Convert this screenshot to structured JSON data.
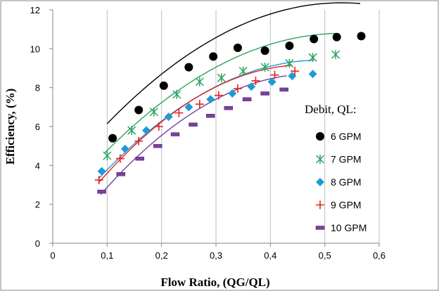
{
  "colors": {
    "gpm6": "#000000",
    "gpm7": "#2ca25f",
    "gpm8": "#1e9bd7",
    "gpm9": "#e8221c",
    "gpm10": "#7b3f9e",
    "grid": "#bfbfbf",
    "axis": "#868686",
    "frame": "#888888"
  },
  "chart_data": {
    "type": "scatter",
    "title": "",
    "xlabel": "Flow Ratio, (QG/QL)",
    "ylabel": "Efficiency,  (%)",
    "xlim": [
      0,
      0.6
    ],
    "ylim": [
      0,
      12
    ],
    "xticks": [
      "0",
      "0,1",
      "0,2",
      "0,3",
      "0,4",
      "0,5",
      "0,6"
    ],
    "yticks": [
      "0",
      "2",
      "4",
      "6",
      "8",
      "10",
      "12"
    ],
    "grid": "vertical",
    "legend": {
      "title": "Debit, QL:",
      "position": "right"
    },
    "series": [
      {
        "name": "6 GPM",
        "marker": "circle",
        "x": [
          0.11,
          0.158,
          0.204,
          0.25,
          0.295,
          0.34,
          0.39,
          0.435,
          0.48,
          0.522,
          0.567
        ],
        "y": [
          5.4,
          6.85,
          8.1,
          9.05,
          9.6,
          10.05,
          9.9,
          10.15,
          10.5,
          10.6,
          10.65
        ],
        "trend": {
          "x0": 0.1,
          "x1": 0.565,
          "coef": [
            2.93,
            35.5,
            -33.4
          ]
        }
      },
      {
        "name": "7 GPM",
        "marker": "asterisk",
        "x": [
          0.1,
          0.145,
          0.186,
          0.228,
          0.27,
          0.31,
          0.35,
          0.39,
          0.435,
          0.478,
          0.52
        ],
        "y": [
          4.5,
          5.8,
          6.75,
          7.65,
          8.3,
          8.5,
          8.85,
          9.05,
          9.25,
          9.55,
          9.7
        ],
        "trend": {
          "x0": 0.095,
          "x1": 0.52,
          "coef": [
            1.66,
            34.3,
            -32.2
          ]
        }
      },
      {
        "name": "8 GPM",
        "marker": "diamond",
        "x": [
          0.09,
          0.133,
          0.172,
          0.213,
          0.25,
          0.29,
          0.33,
          0.365,
          0.403,
          0.44,
          0.478
        ],
        "y": [
          3.7,
          4.85,
          5.8,
          6.5,
          7.0,
          7.4,
          7.7,
          8.05,
          8.3,
          8.6,
          8.7
        ],
        "trend": {
          "x0": 0.085,
          "x1": 0.48,
          "coef": [
            0.54,
            36.0,
            -36.5
          ]
        }
      },
      {
        "name": "9 GPM",
        "marker": "plus",
        "x": [
          0.085,
          0.124,
          0.158,
          0.195,
          0.232,
          0.27,
          0.305,
          0.34,
          0.373,
          0.408,
          0.445
        ],
        "y": [
          3.25,
          4.35,
          5.25,
          6.0,
          6.7,
          7.15,
          7.6,
          7.95,
          8.35,
          8.65,
          8.85
        ],
        "trend": {
          "x0": 0.085,
          "x1": 0.44,
          "coef": [
            0.12,
            39.0,
            -42.0
          ]
        }
      },
      {
        "name": "10 GPM",
        "marker": "bar",
        "x": [
          0.09,
          0.125,
          0.16,
          0.193,
          0.225,
          0.258,
          0.29,
          0.323,
          0.357,
          0.39,
          0.425
        ],
        "y": [
          2.65,
          3.55,
          4.35,
          5.0,
          5.6,
          6.1,
          6.55,
          6.95,
          7.4,
          7.7,
          7.9
        ],
        "trend": {
          "x0": 0.088,
          "x1": 0.43,
          "coef": [
            -0.6,
            38.8,
            -40.4
          ]
        }
      }
    ]
  }
}
